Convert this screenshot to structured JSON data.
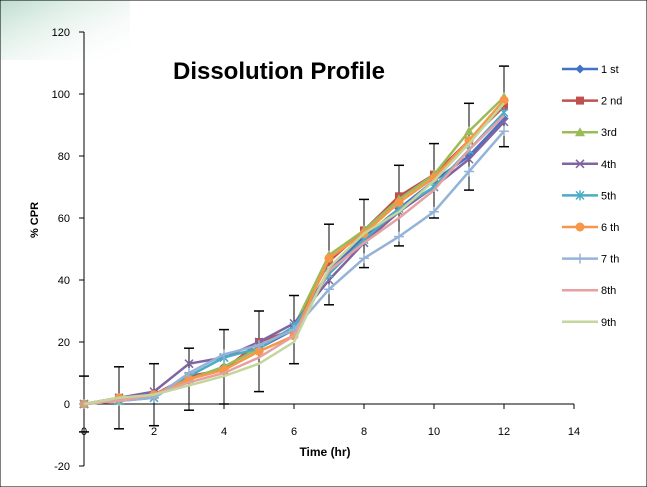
{
  "chart_data": {
    "type": "line",
    "title": "Dissolution Profile",
    "xlabel": "Time (hr)",
    "ylabel": "% CPR",
    "xlim": [
      0,
      14
    ],
    "ylim": [
      -20,
      120
    ],
    "x_ticks": [
      "0",
      "2",
      "4",
      "6",
      "8",
      "10",
      "12",
      "14"
    ],
    "y_ticks": [
      "-20",
      "0",
      "20",
      "40",
      "60",
      "80",
      "100",
      "120"
    ],
    "grid": false,
    "legend_position": "right",
    "x": [
      0,
      1,
      2,
      3,
      4,
      5,
      6,
      7,
      8,
      9,
      10,
      11,
      12
    ],
    "series": [
      {
        "name": "1 st",
        "color": "#4472C4",
        "marker": "diamond",
        "values": [
          0,
          2,
          3,
          8,
          12,
          18,
          24,
          43,
          54,
          63,
          72,
          80,
          92
        ]
      },
      {
        "name": "2 nd",
        "color": "#C0504D",
        "marker": "square",
        "values": [
          0,
          2,
          3,
          9,
          11,
          20,
          24,
          46,
          56,
          67,
          74,
          85,
          96
        ]
      },
      {
        "name": "3rd",
        "color": "#9BBB59",
        "marker": "triangle",
        "values": [
          0,
          1,
          3,
          8,
          12,
          18,
          25,
          48,
          56,
          66,
          74,
          88,
          99
        ]
      },
      {
        "name": "4th",
        "color": "#8064A2",
        "marker": "x",
        "values": [
          0,
          2,
          4,
          13,
          15,
          20,
          26,
          40,
          52,
          62,
          70,
          79,
          91
        ]
      },
      {
        "name": "5th",
        "color": "#4BACC6",
        "marker": "star",
        "values": [
          0,
          1,
          2,
          9,
          15,
          18,
          25,
          42,
          53,
          63,
          70,
          82,
          94
        ]
      },
      {
        "name": "6 th",
        "color": "#F79646",
        "marker": "circle",
        "values": [
          0,
          2,
          3,
          8,
          11,
          17,
          22,
          47,
          55,
          65,
          73,
          85,
          98
        ]
      },
      {
        "name": "7 th",
        "color": "#95B3D7",
        "marker": "plus",
        "values": [
          0,
          1,
          2,
          10,
          16,
          19,
          24,
          37,
          47,
          54,
          62,
          75,
          88
        ]
      },
      {
        "name": "8th",
        "color": "#E6A0A0",
        "marker": "none",
        "values": [
          0,
          1,
          3,
          7,
          10,
          15,
          22,
          43,
          52,
          60,
          69,
          82,
          93
        ]
      },
      {
        "name": "9th",
        "color": "#C3D69B",
        "marker": "none",
        "values": [
          0,
          2,
          3,
          6,
          9,
          13,
          20,
          44,
          55,
          62,
          72,
          84,
          97
        ]
      }
    ],
    "error_bars": {
      "color": "#000000",
      "x": [
        0,
        1,
        2,
        3,
        4,
        5,
        6,
        7,
        8,
        9,
        10,
        11,
        12
      ],
      "center": [
        0,
        2,
        3,
        8,
        12,
        17,
        24,
        45,
        55,
        64,
        72,
        83,
        96
      ],
      "half_width": [
        9,
        10,
        10,
        10,
        12,
        13,
        11,
        13,
        11,
        13,
        12,
        14,
        13
      ]
    }
  }
}
